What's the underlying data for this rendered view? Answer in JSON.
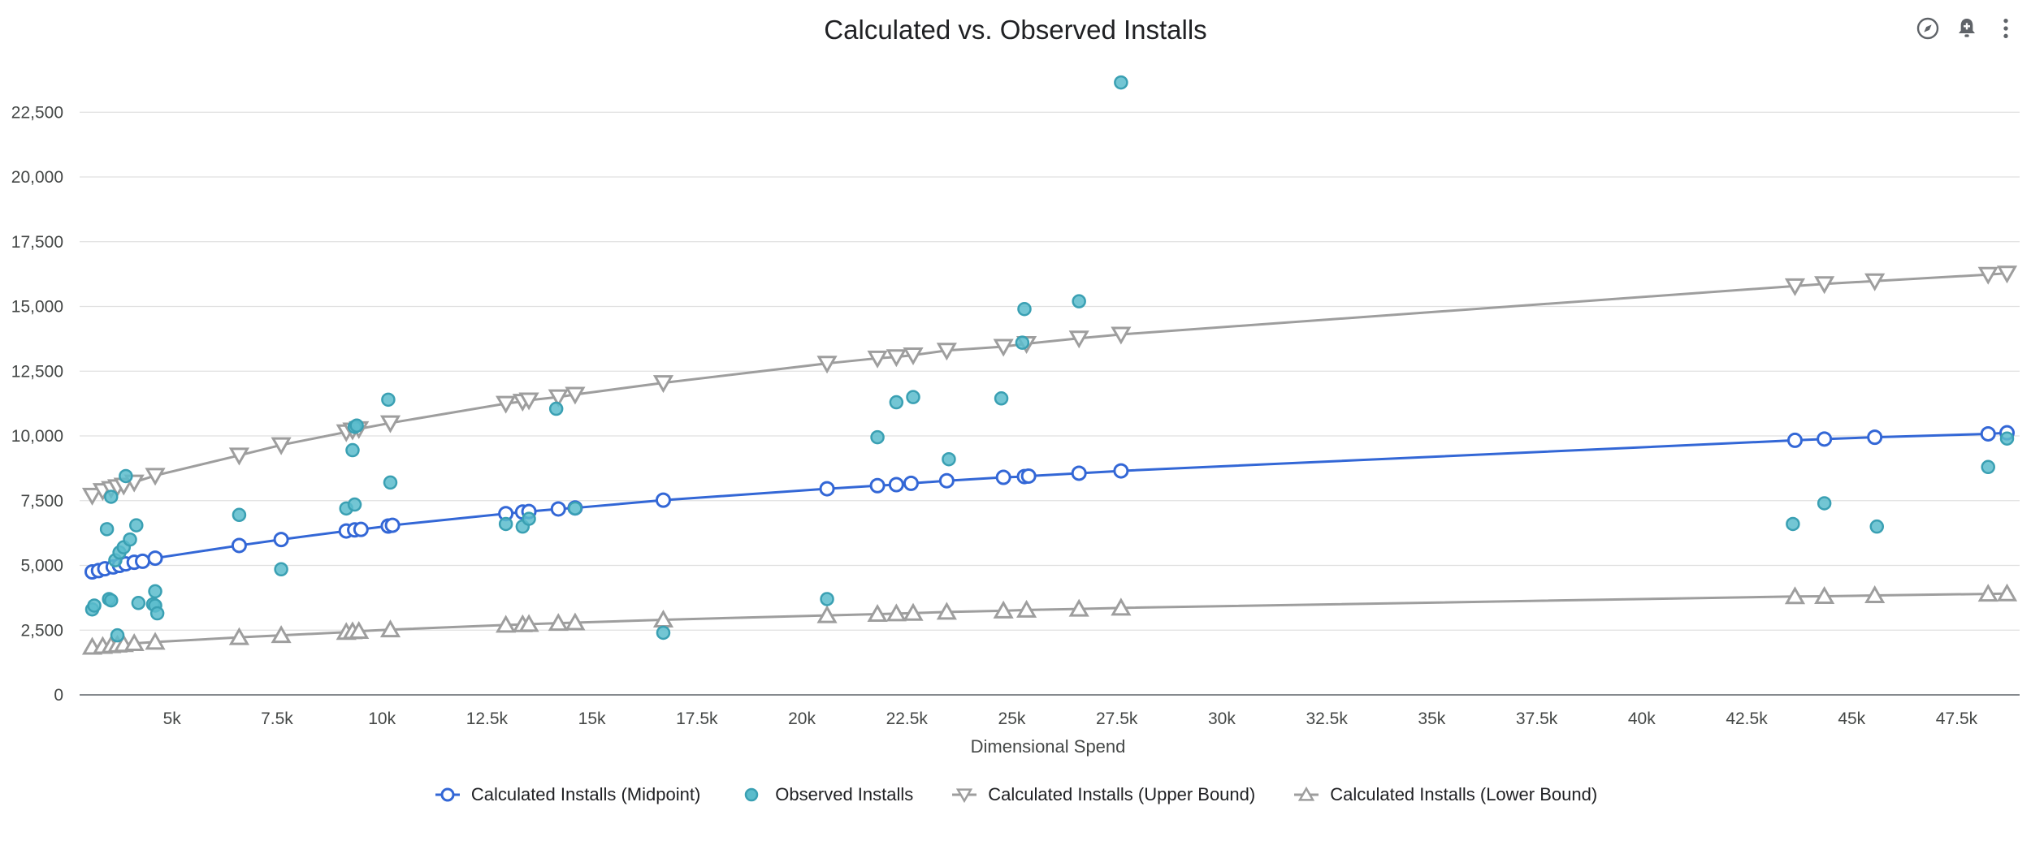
{
  "toolbar": {
    "icons": [
      "explore-icon",
      "add-alert-icon",
      "more-vert-icon"
    ]
  },
  "chart_data": {
    "type": "scatter",
    "title": "Calculated vs. Observed Installs",
    "xlabel": "Dimensional Spend",
    "ylabel": "",
    "xlim": [
      2800,
      49000
    ],
    "ylim": [
      0,
      23700
    ],
    "x_ticks": [
      5000,
      7500,
      10000,
      12500,
      15000,
      17500,
      20000,
      22500,
      25000,
      27500,
      30000,
      32500,
      35000,
      37500,
      40000,
      42500,
      45000,
      47500
    ],
    "x_tick_labels": [
      "5k",
      "7.5k",
      "10k",
      "12.5k",
      "15k",
      "17.5k",
      "20k",
      "22.5k",
      "25k",
      "27.5k",
      "30k",
      "32.5k",
      "35k",
      "37.5k",
      "40k",
      "42.5k",
      "45k",
      "47.5k"
    ],
    "y_ticks": [
      0,
      2500,
      5000,
      7500,
      10000,
      12500,
      15000,
      17500,
      20000,
      22500
    ],
    "y_tick_labels": [
      "0",
      "2,500",
      "5,000",
      "7,500",
      "10,000",
      "12,500",
      "15,000",
      "17,500",
      "20,000",
      "22,500"
    ],
    "legend_position": "bottom",
    "series": [
      {
        "name": "Calculated Installs (Midpoint)",
        "style": "line-open-circle",
        "color": "#3367d6",
        "x": [
          3100,
          3250,
          3400,
          3600,
          3750,
          3900,
          4100,
          4300,
          4600,
          6600,
          7600,
          9150,
          9350,
          9500,
          10150,
          10250,
          12950,
          13350,
          13500,
          14200,
          14600,
          16700,
          20600,
          21800,
          22250,
          22600,
          23450,
          24800,
          25300,
          25400,
          26600,
          27600,
          43650,
          44350,
          45550,
          48250,
          48700
        ],
        "values": [
          4750,
          4800,
          4870,
          4940,
          5000,
          5060,
          5120,
          5160,
          5280,
          5770,
          6000,
          6330,
          6370,
          6390,
          6520,
          6550,
          7000,
          7060,
          7080,
          7180,
          7220,
          7520,
          7960,
          8080,
          8120,
          8170,
          8270,
          8400,
          8430,
          8450,
          8560,
          8650,
          9830,
          9880,
          9950,
          10080,
          10120
        ]
      },
      {
        "name": "Observed Installs",
        "style": "filled-circle",
        "color": "#5bbccc",
        "x": [
          3100,
          3150,
          3450,
          3500,
          3550,
          3550,
          3650,
          3700,
          3750,
          3850,
          3900,
          4000,
          4150,
          4200,
          4550,
          4600,
          4600,
          4650,
          6600,
          7600,
          9150,
          9300,
          9350,
          9350,
          9400,
          10150,
          10200,
          12950,
          13350,
          13500,
          14150,
          14600,
          16700,
          20600,
          21800,
          22250,
          22650,
          23500,
          24750,
          25250,
          25300,
          26600,
          27600,
          43600,
          44350,
          45600,
          48250,
          48700
        ],
        "values": [
          3300,
          3450,
          6400,
          3700,
          3650,
          7650,
          5200,
          2300,
          5500,
          5700,
          8450,
          6000,
          6550,
          3550,
          3500,
          4000,
          3450,
          3150,
          6950,
          4850,
          7200,
          9450,
          7350,
          10350,
          10400,
          11400,
          8200,
          6600,
          6500,
          6800,
          11050,
          7200,
          2400,
          3700,
          9950,
          11300,
          11500,
          9100,
          11450,
          13600,
          14900,
          15200,
          23650,
          6600,
          7400,
          6500,
          8800,
          9900
        ]
      },
      {
        "name": "Calculated Installs (Upper Bound)",
        "style": "line-open-triangle-down",
        "color": "#9e9e9e",
        "x": [
          3100,
          3350,
          3550,
          3700,
          3850,
          4100,
          4600,
          6600,
          7600,
          9150,
          9300,
          9450,
          10200,
          12950,
          13350,
          13500,
          14200,
          14600,
          16700,
          20600,
          21800,
          22250,
          22650,
          23450,
          24800,
          25350,
          26600,
          27600,
          43650,
          44350,
          45550,
          48250,
          48700
        ],
        "values": [
          7700,
          7880,
          7960,
          8030,
          8090,
          8210,
          8470,
          9250,
          9650,
          10150,
          10220,
          10270,
          10500,
          11250,
          11330,
          11380,
          11500,
          11600,
          12050,
          12800,
          13000,
          13050,
          13120,
          13300,
          13450,
          13560,
          13770,
          13920,
          15790,
          15870,
          15980,
          16230,
          16280
        ]
      },
      {
        "name": "Calculated Installs (Lower Bound)",
        "style": "line-open-triangle-up",
        "color": "#9e9e9e",
        "x": [
          3100,
          3350,
          3550,
          3700,
          3850,
          4100,
          4600,
          6600,
          7600,
          9150,
          9300,
          9450,
          10200,
          12950,
          13350,
          13500,
          14200,
          14600,
          16700,
          20600,
          21800,
          22250,
          22650,
          23450,
          24800,
          25350,
          26600,
          27600,
          43650,
          44350,
          45550,
          48250,
          48700
        ],
        "values": [
          1850,
          1880,
          1910,
          1930,
          1950,
          1990,
          2040,
          2220,
          2300,
          2420,
          2450,
          2460,
          2520,
          2700,
          2720,
          2730,
          2770,
          2790,
          2900,
          3070,
          3120,
          3140,
          3160,
          3200,
          3250,
          3280,
          3320,
          3360,
          3800,
          3810,
          3840,
          3900,
          3910
        ]
      }
    ]
  }
}
